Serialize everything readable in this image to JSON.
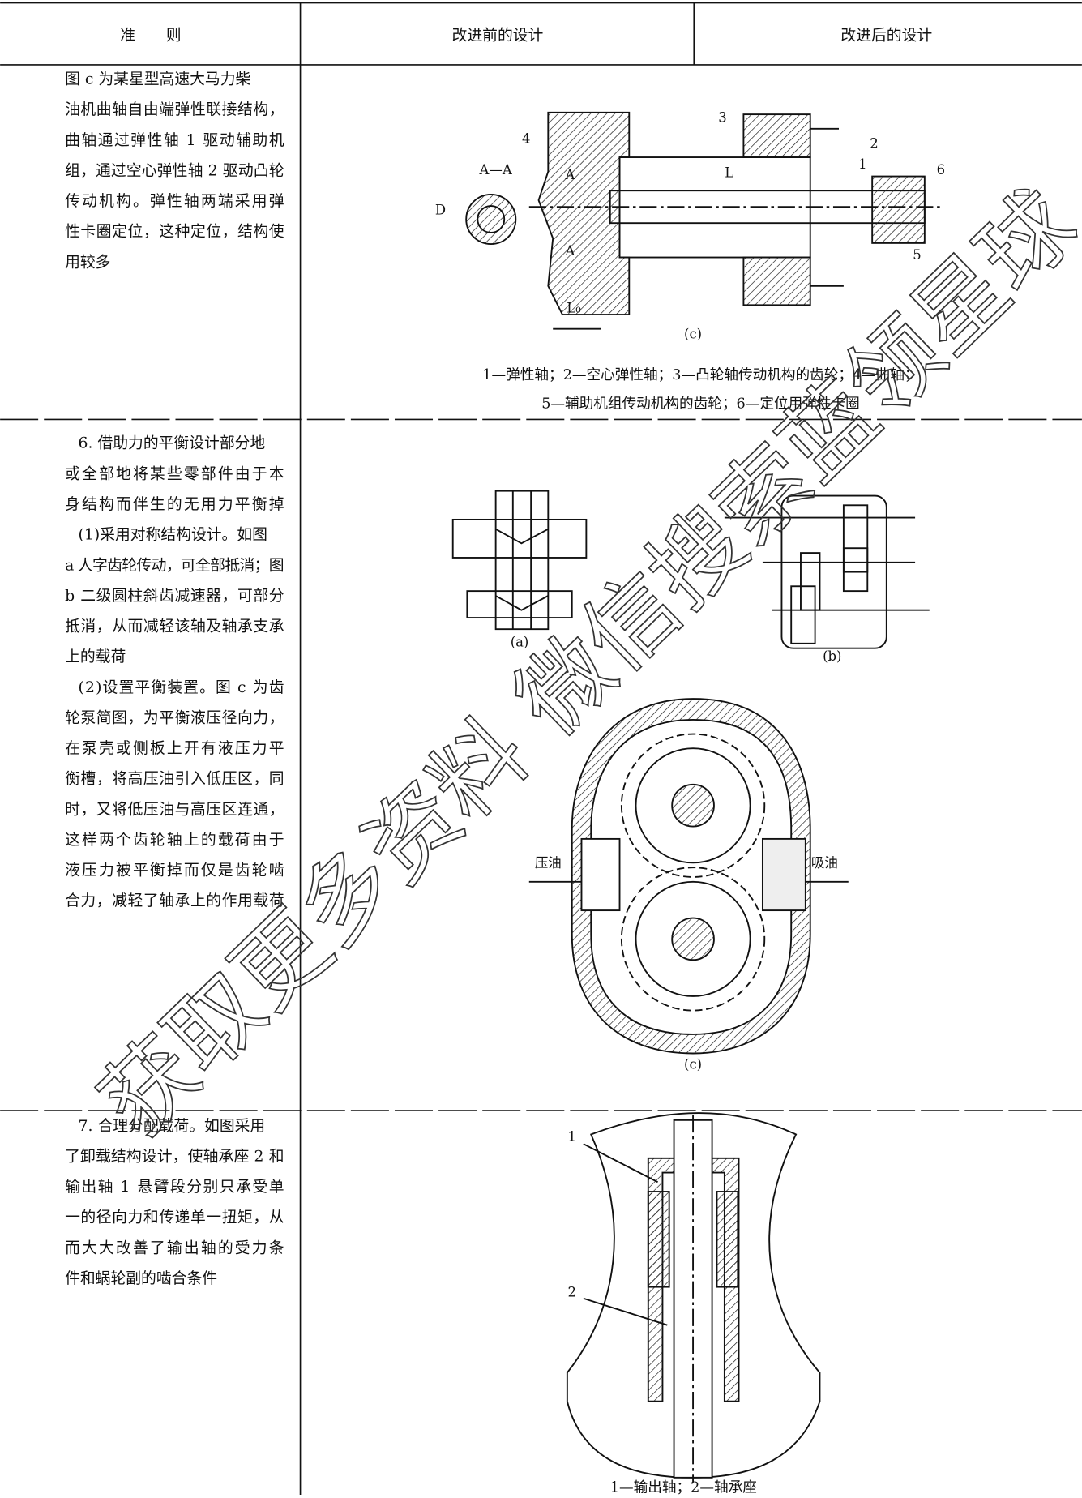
{
  "header": [
    "准　　则",
    "改进前的设计",
    "改进后的设计"
  ],
  "rows": [
    {
      "criterion": [
        "图 c 为某星型高速大马力柴",
        "油机曲轴自由端弹性联接结构，",
        "曲轴通过弹性轴 1 驱动辅助机",
        "组，通过空心弹性轴 2 驱动凸轮",
        "传动机构。弹性轴两端采用弹",
        "性卡圈定位，这种定位，结构使",
        "用较多"
      ],
      "figure_labels": [
        "A—A",
        "D",
        "4",
        "3",
        "2",
        "1",
        "6",
        "5",
        "L",
        "L₀",
        "A",
        "A",
        "(c)"
      ],
      "caption": [
        "1—弹性轴；2—空心弹性轴；3—凸轮轴传动机构的齿轮；4—曲轴；",
        "5—辅助机组传动机构的齿轮；6—定位用弹性卡圈"
      ]
    },
    {
      "criterion": [
        "6. 借助力的平衡设计部分地",
        "或全部地将某些零部件由于本",
        "身结构而伴生的无用力平衡掉",
        "(1)采用对称结构设计。如图",
        "a 人字齿轮传动，可全部抵消；图",
        "b 二级圆柱斜齿减速器，可部分",
        "抵消，从而减轻该轴及轴承支承",
        "上的载荷",
        "(2)设置平衡装置。图 c 为齿",
        "轮泵简图，为平衡液压径向力，",
        "在泵壳或侧板上开有液压力平",
        "衡槽，将高压油引入低压区，同",
        "时，又将低压油与高压区连通，",
        "这样两个齿轮轴上的载荷由于",
        "液压力被平衡掉而仅是齿轮啮",
        "合力，减轻了轴承上的作用载荷"
      ],
      "figure_labels": [
        "(a)",
        "(b)",
        "压油",
        "吸油",
        "(c)"
      ]
    },
    {
      "criterion": [
        "7. 合理分配载荷。如图采用",
        "了卸载结构设计，使轴承座 2 和",
        "输出轴 1 悬臂段分别只承受单",
        "一的径向力和传递单一扭矩，从",
        "而大大改善了输出轴的受力条",
        "件和蜗轮副的啮合条件"
      ],
      "figure_labels": [
        "1",
        "2"
      ],
      "caption": [
        "1—输出轴；2—轴承座"
      ]
    }
  ],
  "watermark": "获取更多资料 微信搜索蓝领星球"
}
